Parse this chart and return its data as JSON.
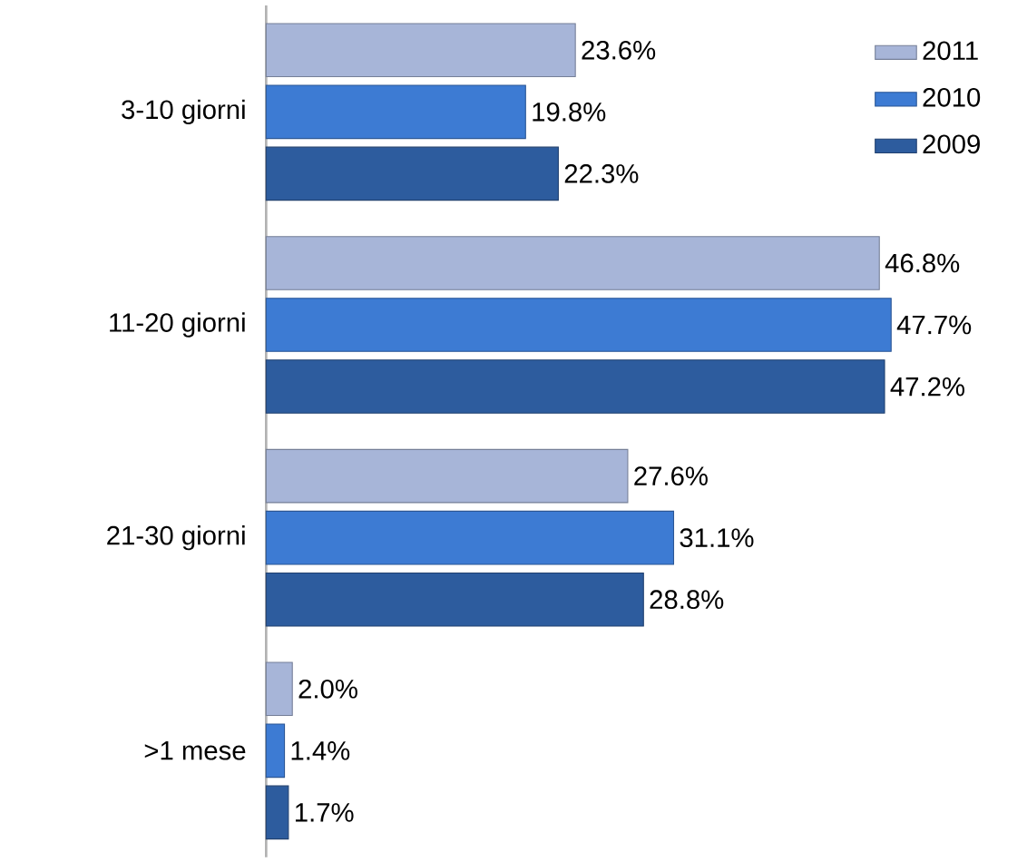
{
  "chart_data": {
    "type": "bar",
    "orientation": "horizontal",
    "categories": [
      "3-10 giorni",
      "11-20 giorni",
      "21-30 giorni",
      ">1 mese"
    ],
    "series": [
      {
        "name": "2011",
        "color": "#a7b5d8",
        "values": [
          23.6,
          46.8,
          27.6,
          2.0
        ],
        "value_labels": [
          "23.6%",
          "46.8%",
          "27.6%",
          "2.0%"
        ]
      },
      {
        "name": "2010",
        "color": "#3d7bd3",
        "values": [
          19.8,
          47.7,
          31.1,
          1.4
        ],
        "value_labels": [
          "19.8%",
          "47.7%",
          "31.1%",
          "1.4%"
        ]
      },
      {
        "name": "2009",
        "color": "#2d5c9e",
        "values": [
          22.3,
          47.2,
          28.8,
          1.7
        ],
        "value_labels": [
          "22.3%",
          "47.2%",
          "28.8%",
          "1.7%"
        ]
      }
    ],
    "legend": "top right"
  }
}
